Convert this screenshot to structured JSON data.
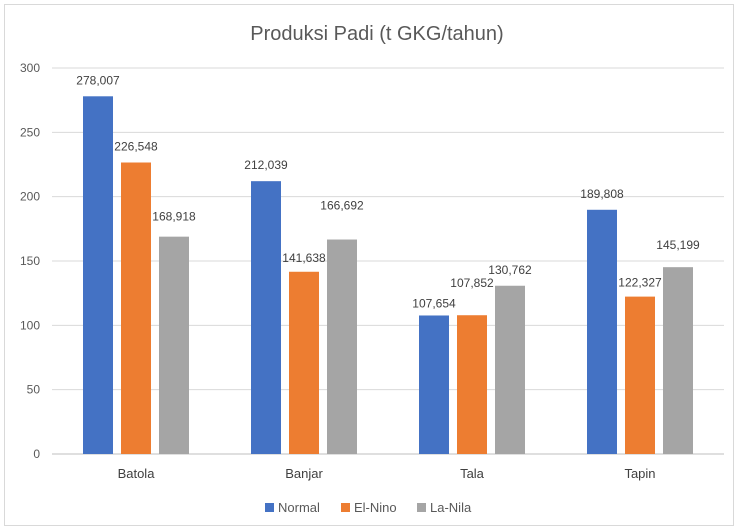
{
  "chart_data": {
    "type": "bar",
    "title": "Produksi Padi (t GKG/tahun)",
    "categories": [
      "Batola",
      "Banjar",
      "Tala",
      "Tapin"
    ],
    "series": [
      {
        "name": "Normal",
        "color": "#4472c4",
        "values": [
          278.007,
          212.039,
          107.654,
          189.808
        ],
        "labels": [
          "278,007",
          "212,039",
          "107,654",
          "189,808"
        ]
      },
      {
        "name": "El-Nino",
        "color": "#ed7d31",
        "values": [
          226.548,
          141.638,
          107.852,
          122.327
        ],
        "labels": [
          "226,548",
          "141,638",
          "107,852",
          "122,327"
        ]
      },
      {
        "name": "La-Nila",
        "color": "#a5a5a5",
        "values": [
          168.918,
          166.692,
          130.762,
          145.199
        ],
        "labels": [
          "168,918",
          "166,692",
          "130,762",
          "145,199"
        ]
      }
    ],
    "ylim": [
      0,
      300
    ],
    "yticks": [
      "0",
      "50",
      "100",
      "150",
      "200",
      "250",
      "300"
    ],
    "ytick_values": [
      0,
      50,
      100,
      150,
      200,
      250,
      300
    ],
    "grid": true,
    "legend_position": "bottom"
  }
}
